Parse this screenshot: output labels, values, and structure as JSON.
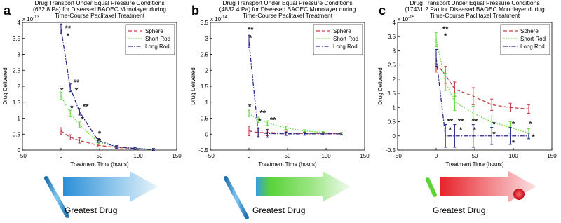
{
  "chart_data": [
    {
      "type": "line",
      "panel": "a",
      "caption": "Greatest Drug",
      "title": "Drug Transport Under Equal Pressure Conditions (632.8 Pa) for Diseased BAOEC Monolayer during Time-Course Paclitaxel Treatment",
      "x_label": "Treatment Time (hours)",
      "y_label": "Drug Delivered",
      "exponent_base": "x 10",
      "exponent": "-13",
      "x": [
        0,
        12,
        24,
        48,
        72,
        96,
        120
      ],
      "xlim": [
        -50,
        150
      ],
      "xticks": [
        -50,
        0,
        50,
        100,
        150
      ],
      "ylim": [
        0,
        4
      ],
      "yticks": [
        0,
        0.5,
        1,
        1.5,
        2,
        2.5,
        3,
        3.5,
        4
      ],
      "legend": "upper right",
      "series": [
        {
          "name": "Sphere",
          "color": "#c83c46",
          "line_style": "dashed",
          "values": [
            0.6,
            0.4,
            0.3,
            0.15,
            0.08,
            0.05,
            0.02
          ],
          "errors": [
            0.1,
            0.08,
            0.08,
            0.05,
            0.04,
            0.03,
            0.03
          ]
        },
        {
          "name": "Short Rod",
          "color": "#5fdc3c",
          "line_style": "dotted",
          "values": [
            1.7,
            1.15,
            0.8,
            0.25,
            0.1,
            0.05,
            0.02
          ],
          "errors": [
            0.12,
            0.1,
            0.08,
            0.05,
            0.04,
            0.03,
            0.03
          ]
        },
        {
          "name": "Long Rod",
          "color": "#2a2a8a",
          "line_style": "dashdot",
          "values": [
            3.8,
            1.95,
            1.2,
            0.3,
            0.1,
            0.05,
            0.02
          ],
          "errors": [
            0.15,
            0.12,
            0.1,
            0.06,
            0.04,
            0.03,
            0.03
          ]
        }
      ],
      "annotations": [
        {
          "text": "**",
          "x": 9,
          "y": 3.85
        },
        {
          "text": "*",
          "x": 9,
          "y": 3.6
        },
        {
          "text": "*",
          "x": 1,
          "y": 1.9
        },
        {
          "text": "**",
          "x": 20,
          "y": 2.15
        },
        {
          "text": "*",
          "x": 20,
          "y": 1.9
        },
        {
          "text": "*",
          "x": 14,
          "y": 1.35
        },
        {
          "text": "**",
          "x": 32,
          "y": 1.4
        },
        {
          "text": "*",
          "x": 28,
          "y": 1.0
        },
        {
          "text": "*",
          "x": 50,
          "y": 0.55
        },
        {
          "text": "*",
          "x": 50,
          "y": 0.32
        }
      ]
    },
    {
      "type": "line",
      "panel": "b",
      "caption": "Greatest Drug",
      "title": "Drug Transport Under Equal Pressure Conditions (4832.4 Pa) for Diseased BAOEC Monolayer during Time-Course Paclitaxel Treatment",
      "x_label": "Treatment Time (hours)",
      "y_label": "Drug Delivered",
      "exponent_base": "x 10",
      "exponent": "-14",
      "x": [
        0,
        12,
        24,
        48,
        72,
        96,
        120
      ],
      "xlim": [
        -50,
        150
      ],
      "xticks": [
        -50,
        0,
        50,
        100,
        150
      ],
      "ylim": [
        -0.5,
        3.5
      ],
      "yticks": [
        -0.5,
        0,
        0.5,
        1,
        1.5,
        2,
        2.5,
        3,
        3.5
      ],
      "legend": "upper right",
      "series": [
        {
          "name": "Sphere",
          "color": "#c83c46",
          "line_style": "dashed",
          "values": [
            0.1,
            0.05,
            0.05,
            0.03,
            0.02,
            0.02,
            0.01
          ],
          "errors": [
            0.15,
            0.12,
            0.1,
            0.06,
            0.05,
            0.04,
            0.03
          ]
        },
        {
          "name": "Short Rod",
          "color": "#5fdc3c",
          "line_style": "dotted",
          "values": [
            0.65,
            0.45,
            0.35,
            0.2,
            0.1,
            0.05,
            0.02
          ],
          "errors": [
            0.1,
            0.08,
            0.07,
            0.05,
            0.04,
            0.03,
            0.03
          ]
        },
        {
          "name": "Long Rod",
          "color": "#2a2a8a",
          "line_style": "dashdot",
          "values": [
            2.9,
            0.05,
            0.02,
            0.01,
            0.01,
            0.01,
            0.01
          ],
          "errors": [
            0.2,
            0.15,
            0.12,
            0.05,
            0.04,
            0.03,
            0.03
          ]
        }
      ],
      "annotations": [
        {
          "text": "**",
          "x": 2,
          "y": 3.3
        },
        {
          "text": "*",
          "x": 2,
          "y": 3.05
        },
        {
          "text": "*",
          "x": 1,
          "y": 0.9
        },
        {
          "text": "**",
          "x": 18,
          "y": 0.7
        },
        {
          "text": "*",
          "x": 14,
          "y": 0.45
        },
        {
          "text": "**",
          "x": 31,
          "y": 0.48
        }
      ]
    },
    {
      "type": "line",
      "panel": "c",
      "caption": "Greatest Drug",
      "title": "Drug Transport Under Equal Pressure Conditions (17431.2 Pa) for Diseased BAOEC Monolayer during Time-Course Paclitaxel Treatment",
      "x_label": "Treatment Time (hours)",
      "y_label": "Drug Delivered",
      "exponent_base": "x 10",
      "exponent": "-15",
      "x": [
        0,
        12,
        24,
        48,
        72,
        96,
        120
      ],
      "xlim": [
        -50,
        150
      ],
      "xticks": [
        -50,
        0,
        50,
        100,
        150
      ],
      "ylim": [
        -0.5,
        4
      ],
      "yticks": [
        -0.5,
        0,
        0.5,
        1,
        1.5,
        2,
        2.5,
        3,
        3.5,
        4
      ],
      "legend": "upper right",
      "series": [
        {
          "name": "Sphere",
          "color": "#c83c46",
          "line_style": "dashed",
          "values": [
            2.55,
            2.15,
            1.65,
            1.4,
            1.1,
            1.0,
            0.95
          ],
          "errors": [
            0.3,
            0.3,
            0.25,
            0.3,
            0.2,
            0.15,
            0.15
          ]
        },
        {
          "name": "Short Rod",
          "color": "#5fdc3c",
          "line_style": "dotted",
          "values": [
            3.4,
            1.9,
            1.2,
            0.8,
            0.5,
            0.3,
            0.1
          ],
          "errors": [
            0.25,
            0.3,
            0.3,
            0.25,
            0.2,
            0.2,
            0.15
          ]
        },
        {
          "name": "Long Rod",
          "color": "#2a2a8a",
          "line_style": "dashdot",
          "values": [
            2.75,
            0,
            0,
            0,
            0,
            0,
            0
          ],
          "errors": [
            0.3,
            0.4,
            0.4,
            0.4,
            0.3,
            0.3,
            0.1
          ]
        }
      ],
      "annotations": [
        {
          "text": "**",
          "x": 12,
          "y": 3.8
        },
        {
          "text": "*",
          "x": 12,
          "y": 3.55
        },
        {
          "text": "**",
          "x": 18,
          "y": 0.55
        },
        {
          "text": "*",
          "x": 18,
          "y": 0.25
        },
        {
          "text": "**",
          "x": 32,
          "y": 0.55
        },
        {
          "text": "*",
          "x": 32,
          "y": 0.25
        },
        {
          "text": "**",
          "x": 50,
          "y": 0.55
        },
        {
          "text": "*",
          "x": 50,
          "y": 0.25
        },
        {
          "text": "*",
          "x": 75,
          "y": 0.45
        },
        {
          "text": "*",
          "x": 75,
          "y": 0.1
        },
        {
          "text": "*",
          "x": 100,
          "y": 0.45
        },
        {
          "text": "*",
          "x": 100,
          "y": -0.2
        },
        {
          "text": "*",
          "x": 122,
          "y": 0.45
        },
        {
          "text": "*",
          "x": 126,
          "y": 0.0
        }
      ]
    }
  ]
}
